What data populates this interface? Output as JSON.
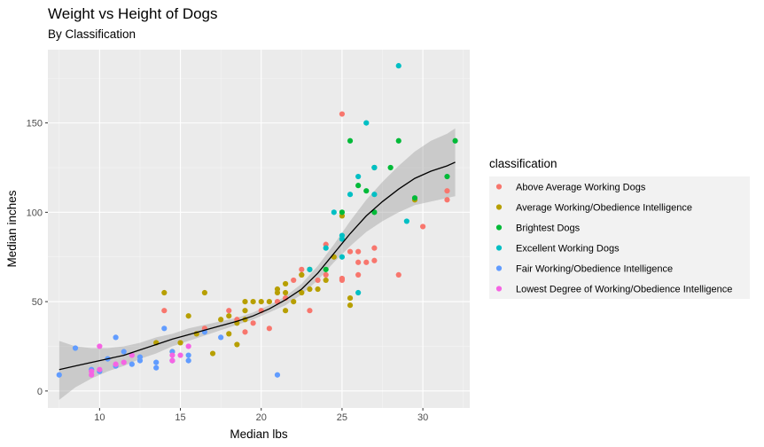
{
  "chart_data": {
    "type": "scatter",
    "title": "Weight vs Height of Dogs",
    "subtitle": "By Classification",
    "xlabel": "Median lbs",
    "ylabel": "Median inches",
    "xlim": [
      6.8,
      32.9
    ],
    "ylim": [
      -9.5,
      191
    ],
    "x_ticks": [
      10,
      15,
      20,
      25,
      30
    ],
    "y_ticks": [
      0,
      50,
      100,
      150
    ],
    "grid": true,
    "legend_title": "classification",
    "legend_position": "right",
    "series": [
      {
        "name": "Above Average Working Dogs",
        "color": "#F8766D",
        "points": [
          [
            14,
            45
          ],
          [
            16.5,
            35
          ],
          [
            18,
            45
          ],
          [
            18.5,
            40
          ],
          [
            19.5,
            38
          ],
          [
            20,
            45
          ],
          [
            21,
            50
          ],
          [
            21.5,
            52
          ],
          [
            22,
            62
          ],
          [
            22.5,
            65
          ],
          [
            22.5,
            68
          ],
          [
            23,
            45
          ],
          [
            24,
            65
          ],
          [
            24,
            82
          ],
          [
            25,
            155
          ],
          [
            25,
            62
          ],
          [
            25,
            63
          ],
          [
            25.5,
            78
          ],
          [
            26,
            72
          ],
          [
            26,
            78
          ],
          [
            26,
            65
          ],
          [
            26.5,
            72
          ],
          [
            27,
            80
          ],
          [
            27,
            73
          ],
          [
            28.5,
            65
          ],
          [
            30,
            92
          ],
          [
            31.5,
            107
          ],
          [
            31.5,
            112
          ],
          [
            19,
            33
          ],
          [
            20.5,
            35
          ],
          [
            23.5,
            62
          ]
        ]
      },
      {
        "name": "Average Working/Obedience Intelligence",
        "color": "#B79F00",
        "points": [
          [
            13.5,
            27
          ],
          [
            14,
            55
          ],
          [
            14.5,
            22
          ],
          [
            15,
            27
          ],
          [
            15.5,
            42
          ],
          [
            16,
            32
          ],
          [
            16.5,
            55
          ],
          [
            17,
            21
          ],
          [
            17.5,
            40
          ],
          [
            18,
            32
          ],
          [
            18,
            42
          ],
          [
            18.5,
            26
          ],
          [
            18.5,
            38
          ],
          [
            19,
            40
          ],
          [
            19,
            45
          ],
          [
            19,
            50
          ],
          [
            19.5,
            50
          ],
          [
            20,
            50
          ],
          [
            20.5,
            50
          ],
          [
            21,
            57
          ],
          [
            21,
            55
          ],
          [
            21.5,
            45
          ],
          [
            21.5,
            55
          ],
          [
            21.5,
            60
          ],
          [
            22,
            50
          ],
          [
            22.5,
            55
          ],
          [
            22.5,
            65
          ],
          [
            23,
            57
          ],
          [
            23,
            68
          ],
          [
            23.5,
            57
          ],
          [
            24,
            62
          ],
          [
            25,
            98
          ],
          [
            25.5,
            52
          ],
          [
            25.5,
            48
          ],
          [
            29.5,
            107
          ],
          [
            24.5,
            75
          ]
        ]
      },
      {
        "name": "Brightest Dogs",
        "color": "#00BA38",
        "points": [
          [
            25,
            100
          ],
          [
            25.5,
            140
          ],
          [
            26,
            115
          ],
          [
            26.5,
            112
          ],
          [
            27,
            100
          ],
          [
            27,
            125
          ],
          [
            28,
            125
          ],
          [
            28.5,
            140
          ],
          [
            29.5,
            108
          ],
          [
            31.5,
            120
          ],
          [
            32,
            140
          ],
          [
            24,
            68
          ]
        ]
      },
      {
        "name": "Excellent Working Dogs",
        "color": "#00BFC4",
        "points": [
          [
            23,
            68
          ],
          [
            24,
            80
          ],
          [
            24.5,
            100
          ],
          [
            25,
            75
          ],
          [
            25,
            85
          ],
          [
            25,
            87
          ],
          [
            25.5,
            110
          ],
          [
            26,
            120
          ],
          [
            26,
            55
          ],
          [
            26.5,
            150
          ],
          [
            27,
            110
          ],
          [
            27,
            125
          ],
          [
            28.5,
            182
          ],
          [
            29,
            95
          ]
        ]
      },
      {
        "name": "Fair Working/Obedience Intelligence",
        "color": "#619CFF",
        "points": [
          [
            7.5,
            9
          ],
          [
            8.5,
            24
          ],
          [
            9.5,
            12
          ],
          [
            10,
            11
          ],
          [
            10.5,
            18
          ],
          [
            11,
            14
          ],
          [
            11,
            30
          ],
          [
            11.5,
            22
          ],
          [
            12,
            15
          ],
          [
            12.5,
            17
          ],
          [
            12.5,
            19
          ],
          [
            13.5,
            13
          ],
          [
            13.5,
            16
          ],
          [
            14,
            35
          ],
          [
            14.5,
            17
          ],
          [
            14.5,
            22
          ],
          [
            15.5,
            17
          ],
          [
            15.5,
            20
          ],
          [
            16.5,
            33
          ],
          [
            17.5,
            30
          ],
          [
            21,
            9
          ]
        ]
      },
      {
        "name": "Lowest Degree of Working/Obedience Intelligence",
        "color": "#F564E3",
        "points": [
          [
            9.5,
            9
          ],
          [
            9.5,
            11
          ],
          [
            10,
            25
          ],
          [
            10,
            12
          ],
          [
            11,
            15
          ],
          [
            11.5,
            16
          ],
          [
            14.5,
            17
          ],
          [
            14.5,
            20
          ],
          [
            15,
            20
          ],
          [
            15.5,
            25
          ],
          [
            12,
            20
          ]
        ]
      }
    ],
    "smooth": {
      "method": "loess",
      "color": "#000000",
      "band_color": "#999999",
      "x": [
        7.5,
        8.5,
        9.5,
        10.5,
        11.5,
        12.5,
        13.5,
        14.5,
        15.5,
        16.5,
        17.5,
        18.5,
        19.5,
        20.5,
        21.5,
        22.5,
        23.5,
        24.5,
        25.5,
        26.5,
        27.5,
        28.5,
        29.5,
        30.5,
        31.5,
        32
      ],
      "y": [
        12,
        14,
        16,
        18,
        20,
        23,
        26,
        29,
        31.5,
        34,
        36.5,
        39,
        42,
        46,
        51,
        57,
        66,
        77,
        88,
        98,
        106,
        113,
        119,
        123,
        126,
        128
      ],
      "lower": [
        -5,
        2,
        7,
        11,
        14,
        18,
        21,
        25,
        28,
        31,
        34,
        37,
        40,
        44,
        48,
        54,
        62,
        72,
        81,
        89,
        95,
        100,
        104,
        106,
        108,
        109
      ],
      "upper": [
        28,
        25,
        24,
        24,
        25,
        27,
        30,
        32,
        35,
        37,
        39,
        41,
        44,
        48,
        53,
        60,
        70,
        82,
        95,
        107,
        117,
        126,
        134,
        140,
        144,
        147
      ]
    }
  }
}
